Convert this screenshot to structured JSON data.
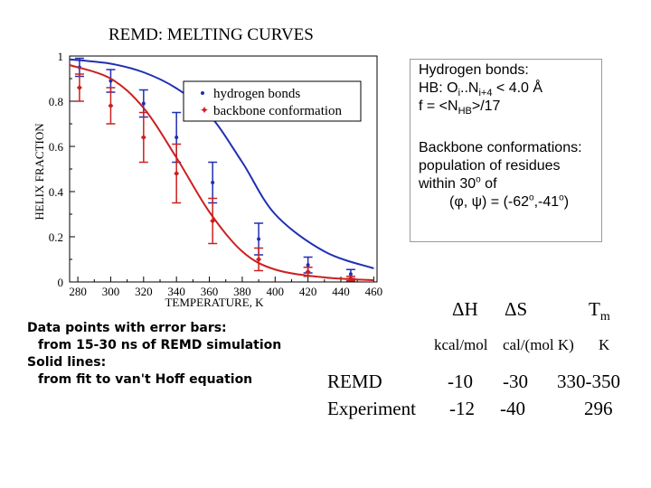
{
  "chart_data": {
    "type": "scatter",
    "title": "REMD: MELTING CURVES",
    "xlabel": "TEMPERATURE, K",
    "ylabel": "HELIX FRACTION",
    "xlim": [
      275,
      462
    ],
    "ylim": [
      0,
      1
    ],
    "x_ticks": [
      "280",
      "300",
      "320",
      "340",
      "360",
      "380",
      "400",
      "420",
      "440",
      "460"
    ],
    "y_ticks": [
      "0",
      "0.2",
      "0.4",
      "0.6",
      "0.8",
      "1"
    ],
    "legend_position": "top-right",
    "series": [
      {
        "name": "hydrogen bonds",
        "color": "#1f2fb3",
        "x": [
          281,
          300,
          320,
          340,
          362,
          390,
          420,
          446
        ],
        "y": [
          0.95,
          0.89,
          0.79,
          0.64,
          0.44,
          0.19,
          0.075,
          0.035
        ],
        "err": [
          0.04,
          0.05,
          0.06,
          0.11,
          0.09,
          0.07,
          0.035,
          0.02
        ],
        "fit": [
          0.985,
          0.966,
          0.928,
          0.857,
          0.74,
          0.53,
          0.3,
          0.135,
          0.06
        ]
      },
      {
        "name": "backbone conformation",
        "color": "#cc2020",
        "x": [
          281,
          300,
          320,
          340,
          362,
          390,
          420,
          446
        ],
        "y": [
          0.86,
          0.78,
          0.64,
          0.48,
          0.27,
          0.1,
          0.045,
          0.015
        ],
        "err": [
          0.06,
          0.08,
          0.11,
          0.13,
          0.1,
          0.05,
          0.02,
          0.01
        ],
        "fit": [
          0.96,
          0.9,
          0.77,
          0.55,
          0.31,
          0.135,
          0.055,
          0.02,
          0.008
        ]
      }
    ],
    "fit_x": [
      275,
      300,
      320,
      340,
      360,
      380,
      400,
      430,
      460
    ]
  },
  "annotation": {
    "hb_heading": "Hydrogen bonds:",
    "hb_def_prefix": "HB: O",
    "hb_sub_i": "i",
    "hb_dots": "..N",
    "hb_sub_i4": "i+4",
    "hb_def_suffix": " < 4.0 Å",
    "hb_f_prefix": "f = <N",
    "hb_f_sub": "HB",
    "hb_f_suffix": ">/17",
    "bb_heading": "Backbone conformations:",
    "bb_line1": "population of residues",
    "bb_line2_prefix": "within 30",
    "bb_deg": "o",
    "bb_line2_suffix": " of",
    "bb_line3_a": "(",
    "bb_phi": "φ",
    "bb_comma": ", ",
    "bb_psi": "ψ",
    "bb_line3_b": ") = (-62",
    "bb_deg2": "o",
    "bb_line3_c": ",-41",
    "bb_deg3": "o",
    "bb_line3_d": ")"
  },
  "notes": {
    "line1": "Data points with error bars:",
    "line2": "from 15-30 ns of REMD simulation",
    "line3": "Solid lines:",
    "line4": "from fit to van't Hoff equation"
  },
  "thermo": {
    "dH": "ΔH",
    "dS": "ΔS",
    "tm_main": "T",
    "tm_sub": "m",
    "unit_h": "kcal/mol",
    "unit_s": "cal/(mol K)",
    "unit_t": "K",
    "rows": [
      {
        "label": "REMD",
        "dh": "-10",
        "ds": "-30",
        "tm": "330-350"
      },
      {
        "label": "Experiment",
        "dh": "-12",
        "ds": "-40",
        "tm": "296"
      }
    ]
  }
}
